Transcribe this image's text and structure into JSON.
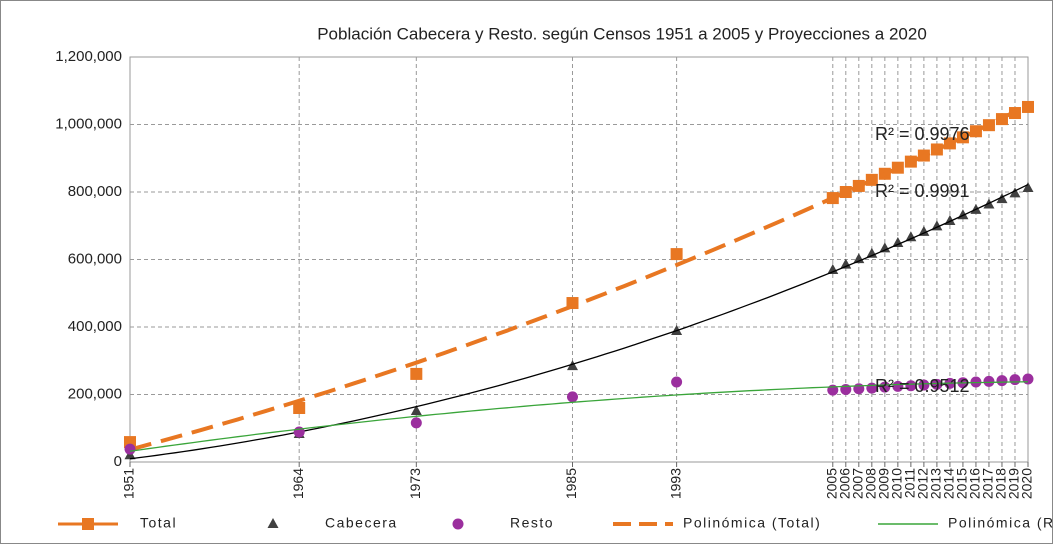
{
  "chart_data": {
    "type": "scatter",
    "title": "Población  Cabecera y Resto. según Censos 1951 a 2005 y Proyecciones a 2020",
    "x": [
      1951,
      1964,
      1973,
      1985,
      1993,
      2005,
      2006,
      2007,
      2008,
      2009,
      2010,
      2011,
      2012,
      2013,
      2014,
      2015,
      2016,
      2017,
      2018,
      2019,
      2020
    ],
    "xlim": [
      1951,
      2020
    ],
    "xticks": [
      1951,
      1964,
      1973,
      1985,
      1993,
      2005,
      2006,
      2007,
      2008,
      2009,
      2010,
      2011,
      2012,
      2013,
      2014,
      2015,
      2016,
      2017,
      2018,
      2019,
      2020
    ],
    "ylim": [
      0,
      1200000
    ],
    "yticks": [
      0,
      {
        "value": 200000,
        "label": "200,000"
      },
      {
        "value": 400000,
        "label": "400,000"
      },
      {
        "value": 600000,
        "label": "600,000"
      },
      {
        "value": 800000,
        "label": "800,000"
      },
      {
        "value": 1000000,
        "label": "1,000,000"
      },
      {
        "value": 1200000,
        "label": "1,200,000"
      }
    ],
    "grid": true,
    "series": [
      {
        "name": "Total",
        "color": "#e87722",
        "marker": "square",
        "values": [
          59000,
          160000,
          261000,
          471000,
          616000,
          782000,
          800000,
          818000,
          836000,
          854000,
          872000,
          890000,
          908000,
          926000,
          944000,
          962000,
          980000,
          998000,
          1016000,
          1034000,
          1052000
        ],
        "trendline": {
          "name": "Polinómica (Total)",
          "color": "#e87722",
          "dashed": true,
          "label": "R² = 0.9976"
        }
      },
      {
        "name": "Cabecera",
        "color": "#404040",
        "marker": "triangle",
        "values": [
          20000,
          83000,
          151000,
          284000,
          388000,
          569000,
          585000,
          601000,
          617000,
          633000,
          649000,
          666000,
          682000,
          698000,
          714000,
          731000,
          747000,
          763000,
          779000,
          796000,
          812000
        ],
        "trendline": {
          "color": "#000000",
          "dashed": false,
          "label": "R² = 0.9991"
        }
      },
      {
        "name": "Resto",
        "color": "#9b2f9e",
        "marker": "circle",
        "values": [
          38000,
          89000,
          116000,
          193000,
          237000,
          213000,
          215000,
          217000,
          219000,
          222000,
          224000,
          226000,
          228000,
          230000,
          233000,
          235000,
          237000,
          239000,
          241000,
          244000,
          246000
        ],
        "trendline": {
          "name": "Polinómica (Resto)",
          "color": "#3aa53a",
          "dashed": false,
          "label": "R² = 0.9512"
        }
      }
    ]
  }
}
